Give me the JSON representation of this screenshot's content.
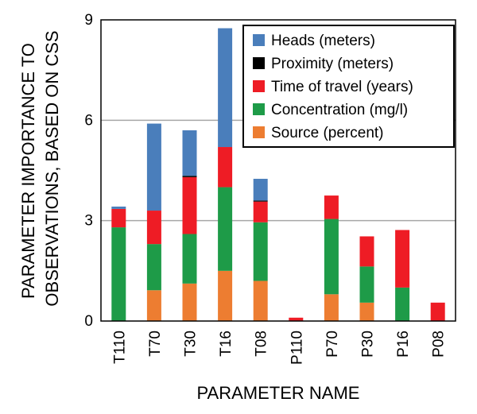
{
  "chart_data": {
    "type": "bar",
    "stacked": true,
    "title": "",
    "xlabel": "PARAMETER NAME",
    "ylabel_lines": [
      "PARAMETER IMPORTANCE TO",
      "OBSERVATIONS, BASED ON CSS"
    ],
    "ylim": [
      0,
      9
    ],
    "yticks": [
      "0",
      "3",
      "6",
      "9"
    ],
    "ytick_values": [
      0,
      3,
      6,
      9
    ],
    "grid": "horizontal at 3 and 6",
    "legend_position": "top-right",
    "categories": [
      "T110",
      "T70",
      "T30",
      "T16",
      "T08",
      "P110",
      "P70",
      "P30",
      "P16",
      "P08"
    ],
    "series": [
      {
        "name": "Source (percent)",
        "color": "#ED7D31",
        "values": [
          0,
          0.92,
          1.12,
          1.5,
          1.2,
          0,
          0.8,
          0.55,
          0,
          0
        ]
      },
      {
        "name": "Concentration (mg/l)",
        "color": "#1E9B48",
        "values": [
          2.8,
          1.38,
          1.48,
          2.5,
          1.75,
          0,
          2.25,
          1.08,
          1.0,
          0
        ]
      },
      {
        "name": "Time of travel (years)",
        "color": "#EE1C25",
        "values": [
          0.55,
          1.0,
          1.7,
          1.2,
          0.62,
          0.1,
          0.7,
          0.9,
          1.72,
          0.55
        ]
      },
      {
        "name": "Proximity (meters)",
        "color": "#000000",
        "values": [
          0,
          0,
          0.04,
          0,
          0.03,
          0,
          0,
          0,
          0,
          0
        ]
      },
      {
        "name": "Heads (meters)",
        "color": "#4A7EBB",
        "values": [
          0.07,
          2.6,
          1.36,
          3.55,
          0.65,
          0,
          0,
          0,
          0,
          0
        ]
      }
    ],
    "legend_order": [
      "Heads (meters)",
      "Proximity (meters)",
      "Time of travel (years)",
      "Concentration (mg/l)",
      "Source (percent)"
    ]
  }
}
